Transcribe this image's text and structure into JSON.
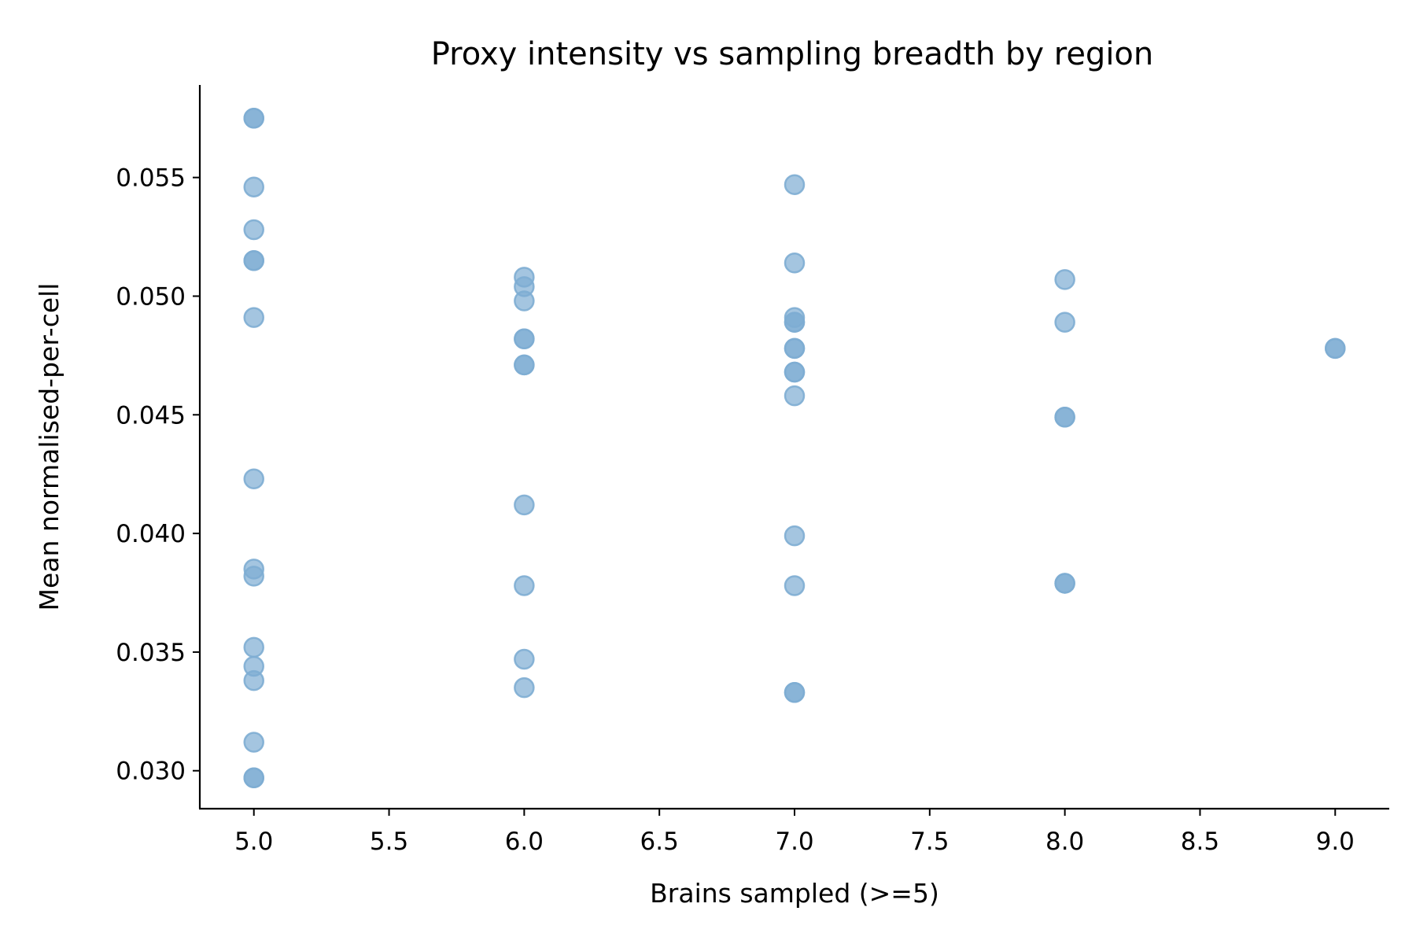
{
  "chart_data": {
    "type": "scatter",
    "title": "Proxy intensity vs sampling breadth by region",
    "xlabel": "Brains sampled (>=5)",
    "ylabel": "Mean normalised-per-cell",
    "xlim": [
      4.8,
      9.2
    ],
    "ylim": [
      0.0284,
      0.0589
    ],
    "xticks": [
      5.0,
      5.5,
      6.0,
      6.5,
      7.0,
      7.5,
      8.0,
      8.5,
      9.0
    ],
    "xtick_labels": [
      "5.0",
      "5.5",
      "6.0",
      "6.5",
      "7.0",
      "7.5",
      "8.0",
      "8.5",
      "9.0"
    ],
    "yticks": [
      0.03,
      0.035,
      0.04,
      0.045,
      0.05,
      0.055
    ],
    "ytick_labels": [
      "0.030",
      "0.035",
      "0.040",
      "0.045",
      "0.050",
      "0.055"
    ],
    "grid": false,
    "point_color": "#7eadd3",
    "points": [
      {
        "x": 5,
        "y": 0.0575
      },
      {
        "x": 5,
        "y": 0.0575
      },
      {
        "x": 5,
        "y": 0.0546
      },
      {
        "x": 5,
        "y": 0.0528
      },
      {
        "x": 5,
        "y": 0.0515
      },
      {
        "x": 5,
        "y": 0.0515
      },
      {
        "x": 5,
        "y": 0.0491
      },
      {
        "x": 5,
        "y": 0.0423
      },
      {
        "x": 5,
        "y": 0.0385
      },
      {
        "x": 5,
        "y": 0.0382
      },
      {
        "x": 5,
        "y": 0.0352
      },
      {
        "x": 5,
        "y": 0.0344
      },
      {
        "x": 5,
        "y": 0.0338
      },
      {
        "x": 5,
        "y": 0.0312
      },
      {
        "x": 5,
        "y": 0.0297
      },
      {
        "x": 5,
        "y": 0.0297
      },
      {
        "x": 6,
        "y": 0.0508
      },
      {
        "x": 6,
        "y": 0.0504
      },
      {
        "x": 6,
        "y": 0.0498
      },
      {
        "x": 6,
        "y": 0.0482
      },
      {
        "x": 6,
        "y": 0.0482
      },
      {
        "x": 6,
        "y": 0.0471
      },
      {
        "x": 6,
        "y": 0.0471
      },
      {
        "x": 6,
        "y": 0.0412
      },
      {
        "x": 6,
        "y": 0.0378
      },
      {
        "x": 6,
        "y": 0.0347
      },
      {
        "x": 6,
        "y": 0.0335
      },
      {
        "x": 7,
        "y": 0.0547
      },
      {
        "x": 7,
        "y": 0.0514
      },
      {
        "x": 7,
        "y": 0.0491
      },
      {
        "x": 7,
        "y": 0.0489
      },
      {
        "x": 7,
        "y": 0.0489
      },
      {
        "x": 7,
        "y": 0.0478
      },
      {
        "x": 7,
        "y": 0.0478
      },
      {
        "x": 7,
        "y": 0.0468
      },
      {
        "x": 7,
        "y": 0.0468
      },
      {
        "x": 7,
        "y": 0.0458
      },
      {
        "x": 7,
        "y": 0.0399
      },
      {
        "x": 7,
        "y": 0.0378
      },
      {
        "x": 7,
        "y": 0.0333
      },
      {
        "x": 7,
        "y": 0.0333
      },
      {
        "x": 8,
        "y": 0.0507
      },
      {
        "x": 8,
        "y": 0.0489
      },
      {
        "x": 8,
        "y": 0.0449
      },
      {
        "x": 8,
        "y": 0.0449
      },
      {
        "x": 8,
        "y": 0.0379
      },
      {
        "x": 8,
        "y": 0.0379
      },
      {
        "x": 9,
        "y": 0.0478
      },
      {
        "x": 9,
        "y": 0.0478
      }
    ]
  }
}
